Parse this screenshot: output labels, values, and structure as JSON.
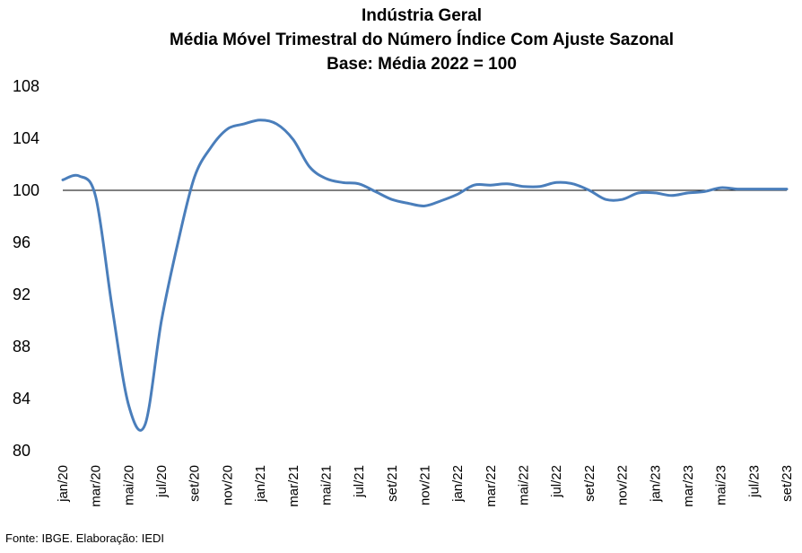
{
  "chart_data": {
    "type": "line",
    "title_lines": [
      "Indústria Geral",
      "Média Móvel Trimestral do Número Índice Com Ajuste Sazonal",
      "Base: Média 2022 = 100"
    ],
    "xlabel": "",
    "ylabel": "",
    "ylim": [
      80,
      108
    ],
    "yticks": [
      "108",
      "104",
      "100",
      "96",
      "92",
      "88",
      "84",
      "80"
    ],
    "reference_line": 100,
    "grid": false,
    "legend": "none",
    "x_tick_labels": [
      "jan/20",
      "mar/20",
      "mai/20",
      "jul/20",
      "set/20",
      "nov/20",
      "jan/21",
      "mar/21",
      "mai/21",
      "jul/21",
      "set/21",
      "nov/21",
      "jan/22",
      "mar/22",
      "mai/22",
      "jul/22",
      "set/22",
      "nov/22",
      "jan/23",
      "mar/23",
      "mai/23",
      "jul/23",
      "set/23"
    ],
    "x": [
      "jan/20",
      "fev/20",
      "mar/20",
      "abr/20",
      "mai/20",
      "jun/20",
      "jul/20",
      "ago/20",
      "set/20",
      "out/20",
      "nov/20",
      "dez/20",
      "jan/21",
      "fev/21",
      "mar/21",
      "abr/21",
      "mai/21",
      "jun/21",
      "jul/21",
      "ago/21",
      "set/21",
      "out/21",
      "nov/21",
      "dez/21",
      "jan/22",
      "fev/22",
      "mar/22",
      "abr/22",
      "mai/22",
      "jun/22",
      "jul/22",
      "ago/22",
      "set/22",
      "out/22",
      "nov/22",
      "dez/22",
      "jan/23",
      "fev/23",
      "mar/23",
      "abr/23",
      "mai/23",
      "jun/23",
      "jul/23",
      "ago/23",
      "set/23"
    ],
    "series": [
      {
        "color": "#4a7ebb",
        "values": [
          100.8,
          101.1,
          99.5,
          91.0,
          83.5,
          82.0,
          90.0,
          96.0,
          101.0,
          103.3,
          104.7,
          105.1,
          105.4,
          105.1,
          103.9,
          101.8,
          100.9,
          100.6,
          100.5,
          99.9,
          99.3,
          99.0,
          98.8,
          99.2,
          99.7,
          100.4,
          100.4,
          100.5,
          100.3,
          100.3,
          100.6,
          100.5,
          100.0,
          99.3,
          99.3,
          99.8,
          99.8,
          99.6,
          99.8,
          99.9,
          100.2,
          100.1,
          100.1,
          100.1,
          100.1
        ]
      }
    ]
  },
  "source_text": "Fonte: IBGE. Elaboração: IEDI"
}
